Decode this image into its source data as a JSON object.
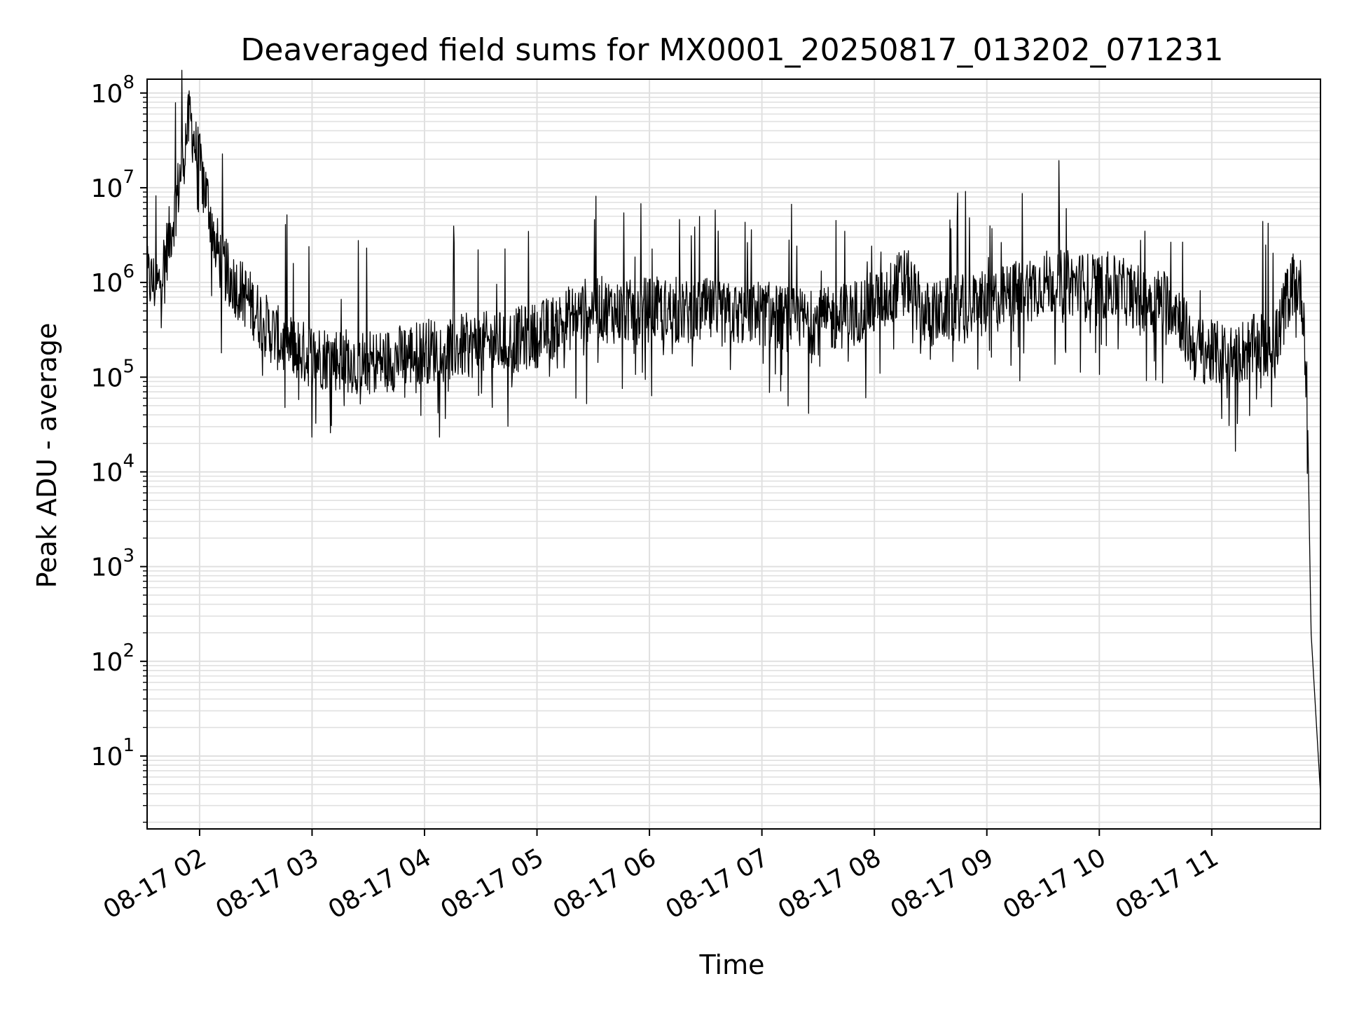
{
  "chart_data": {
    "type": "line",
    "title": "Deaveraged field sums for MX0001_20250817_013202_071231",
    "xlabel": "Time",
    "ylabel": "Peak ADU - average",
    "yscale": "log",
    "ylim": [
      1.7,
      140000000
    ],
    "xlim": [
      "2025-08-17 01:32:00",
      "2025-08-17 11:58:00"
    ],
    "grid": true,
    "legend": "none",
    "colors": {
      "line": "#000000",
      "grid": "#e0e0e0",
      "axes": "#000000"
    },
    "x_ticks": [
      {
        "label": "08-17 02",
        "value": "2025-08-17 02:00"
      },
      {
        "label": "08-17 03",
        "value": "2025-08-17 03:00"
      },
      {
        "label": "08-17 04",
        "value": "2025-08-17 04:00"
      },
      {
        "label": "08-17 05",
        "value": "2025-08-17 05:00"
      },
      {
        "label": "08-17 06",
        "value": "2025-08-17 06:00"
      },
      {
        "label": "08-17 07",
        "value": "2025-08-17 07:00"
      },
      {
        "label": "08-17 08",
        "value": "2025-08-17 08:00"
      },
      {
        "label": "08-17 09",
        "value": "2025-08-17 09:00"
      },
      {
        "label": "08-17 10",
        "value": "2025-08-17 10:00"
      },
      {
        "label": "08-17 11",
        "value": "2025-08-17 11:00"
      }
    ],
    "y_ticks": [
      {
        "base": "10",
        "exp": "1",
        "value": 10
      },
      {
        "base": "10",
        "exp": "2",
        "value": 100
      },
      {
        "base": "10",
        "exp": "3",
        "value": 1000
      },
      {
        "base": "10",
        "exp": "4",
        "value": 10000
      },
      {
        "base": "10",
        "exp": "5",
        "value": 100000
      },
      {
        "base": "10",
        "exp": "6",
        "value": 1000000
      },
      {
        "base": "10",
        "exp": "7",
        "value": 10000000
      },
      {
        "base": "10",
        "exp": "8",
        "value": 100000000
      }
    ],
    "series": [
      {
        "x": [
          "2025-08-17 01:32",
          "2025-08-17 01:38",
          "2025-08-17 01:44",
          "2025-08-17 01:48",
          "2025-08-17 01:52",
          "2025-08-17 01:55",
          "2025-08-17 01:58",
          "2025-08-17 02:02",
          "2025-08-17 02:06",
          "2025-08-17 02:10",
          "2025-08-17 02:15",
          "2025-08-17 02:20",
          "2025-08-17 02:25",
          "2025-08-17 02:30",
          "2025-08-17 02:35",
          "2025-08-17 02:40",
          "2025-08-17 02:45",
          "2025-08-17 02:50",
          "2025-08-17 02:55",
          "2025-08-17 03:00",
          "2025-08-17 03:10",
          "2025-08-17 03:20",
          "2025-08-17 03:30",
          "2025-08-17 03:40",
          "2025-08-17 03:50",
          "2025-08-17 04:00",
          "2025-08-17 04:10",
          "2025-08-17 04:20",
          "2025-08-17 04:30",
          "2025-08-17 04:40",
          "2025-08-17 04:50",
          "2025-08-17 05:00",
          "2025-08-17 05:10",
          "2025-08-17 05:20",
          "2025-08-17 05:30",
          "2025-08-17 05:40",
          "2025-08-17 05:50",
          "2025-08-17 06:00",
          "2025-08-17 06:10",
          "2025-08-17 06:20",
          "2025-08-17 06:30",
          "2025-08-17 06:40",
          "2025-08-17 06:50",
          "2025-08-17 07:00",
          "2025-08-17 07:10",
          "2025-08-17 07:20",
          "2025-08-17 07:30",
          "2025-08-17 07:40",
          "2025-08-17 07:50",
          "2025-08-17 08:00",
          "2025-08-17 08:10",
          "2025-08-17 08:15",
          "2025-08-17 08:20",
          "2025-08-17 08:25",
          "2025-08-17 08:30",
          "2025-08-17 08:40",
          "2025-08-17 08:50",
          "2025-08-17 09:00",
          "2025-08-17 09:10",
          "2025-08-17 09:20",
          "2025-08-17 09:30",
          "2025-08-17 09:40",
          "2025-08-17 09:50",
          "2025-08-17 10:00",
          "2025-08-17 10:10",
          "2025-08-17 10:20",
          "2025-08-17 10:30",
          "2025-08-17 10:40",
          "2025-08-17 10:50",
          "2025-08-17 11:00",
          "2025-08-17 11:10",
          "2025-08-17 11:20",
          "2025-08-17 11:30",
          "2025-08-17 11:35",
          "2025-08-17 11:40",
          "2025-08-17 11:44",
          "2025-08-17 11:47",
          "2025-08-17 11:49",
          "2025-08-17 11:51",
          "2025-08-17 11:53",
          "2025-08-17 11:58"
        ],
        "y": [
          1100000,
          900000,
          3000000,
          8000000,
          30000000,
          55000000,
          25000000,
          12000000,
          5000000,
          2000000,
          1200000,
          900000,
          700000,
          500000,
          350000,
          280000,
          220000,
          200000,
          180000,
          170000,
          160000,
          150000,
          140000,
          150000,
          170000,
          190000,
          200000,
          210000,
          220000,
          230000,
          250000,
          280000,
          350000,
          450000,
          550000,
          500000,
          480000,
          520000,
          500000,
          480000,
          500000,
          450000,
          470000,
          480000,
          420000,
          400000,
          380000,
          420000,
          500000,
          600000,
          800000,
          1100000,
          900000,
          500000,
          450000,
          520000,
          550000,
          600000,
          700000,
          850000,
          1000000,
          1000000,
          950000,
          900000,
          850000,
          700000,
          650000,
          600000,
          200000,
          180000,
          170000,
          200000,
          230000,
          250000,
          700000,
          1000000,
          900000,
          500000,
          50000,
          200,
          4
        ]
      }
    ]
  }
}
